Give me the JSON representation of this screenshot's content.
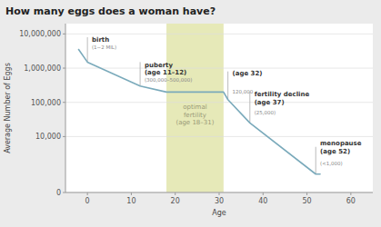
{
  "chart_data": {
    "type": "line",
    "title": "How many eggs does a woman have?",
    "x_label": "Age",
    "y_label": "Average Number of Eggs",
    "x": [
      -2,
      0,
      12,
      18,
      31,
      32,
      37,
      52,
      53
    ],
    "values": [
      3500000,
      1500000,
      300000,
      200000,
      200000,
      120000,
      25000,
      800,
      800
    ],
    "color": "#7aaabb",
    "log": "y",
    "grid": true,
    "xlim": [
      -5,
      65
    ],
    "xticks": [
      0,
      10,
      20,
      30,
      40,
      50,
      60
    ],
    "ylim": [
      0,
      20000000
    ],
    "yticks": [
      0,
      {
        "value": 10000,
        "label": "10,000"
      },
      {
        "value": 100000,
        "label": "100,000"
      },
      {
        "value": 1000000,
        "label": "1,000,000"
      },
      {
        "value": 10000000,
        "label": "10,000,000"
      }
    ],
    "shaded_range": [
      18,
      31
    ],
    "shade_color": "#e6e9b8",
    "shade_label": {
      "text": "optimal\nfertility\n(age 18–31)",
      "x": 24.5,
      "y": 20000
    },
    "annotations": [
      {
        "text": "birth",
        "x": 1,
        "y": 8500000
      },
      {
        "text": "puberty\n(age 11–12)",
        "x": 13,
        "y": 1600000
      },
      {
        "text": "(age 32)",
        "x": 33,
        "y": 900000
      },
      {
        "text": "fertility decline\n(age 37)",
        "x": 38,
        "y": 220000
      },
      {
        "text": "menopause\n(age 52)",
        "x": 53,
        "y": 8000
      }
    ],
    "notes": [
      {
        "text": "(1~2 MIL)",
        "x": 1,
        "y": 5000000
      },
      {
        "text": "(300,000–500,000)",
        "x": 13,
        "y": 550000
      },
      {
        "text": "120,000",
        "x": 33,
        "y": 250000
      },
      {
        "text": "(25,000)",
        "x": 38,
        "y": 60000
      },
      {
        "text": "(<1,000)",
        "x": 53,
        "y": 2000
      }
    ],
    "guides": [
      {
        "x": 0,
        "y": [
          1500000,
          8000000
        ]
      },
      {
        "x": 12,
        "y": [
          300000,
          1500000
        ]
      },
      {
        "x": 32,
        "y": [
          120000,
          800000
        ]
      },
      {
        "x": 37,
        "y": [
          25000,
          200000
        ]
      },
      {
        "x": 52,
        "y": [
          800,
          5000
        ]
      }
    ]
  }
}
